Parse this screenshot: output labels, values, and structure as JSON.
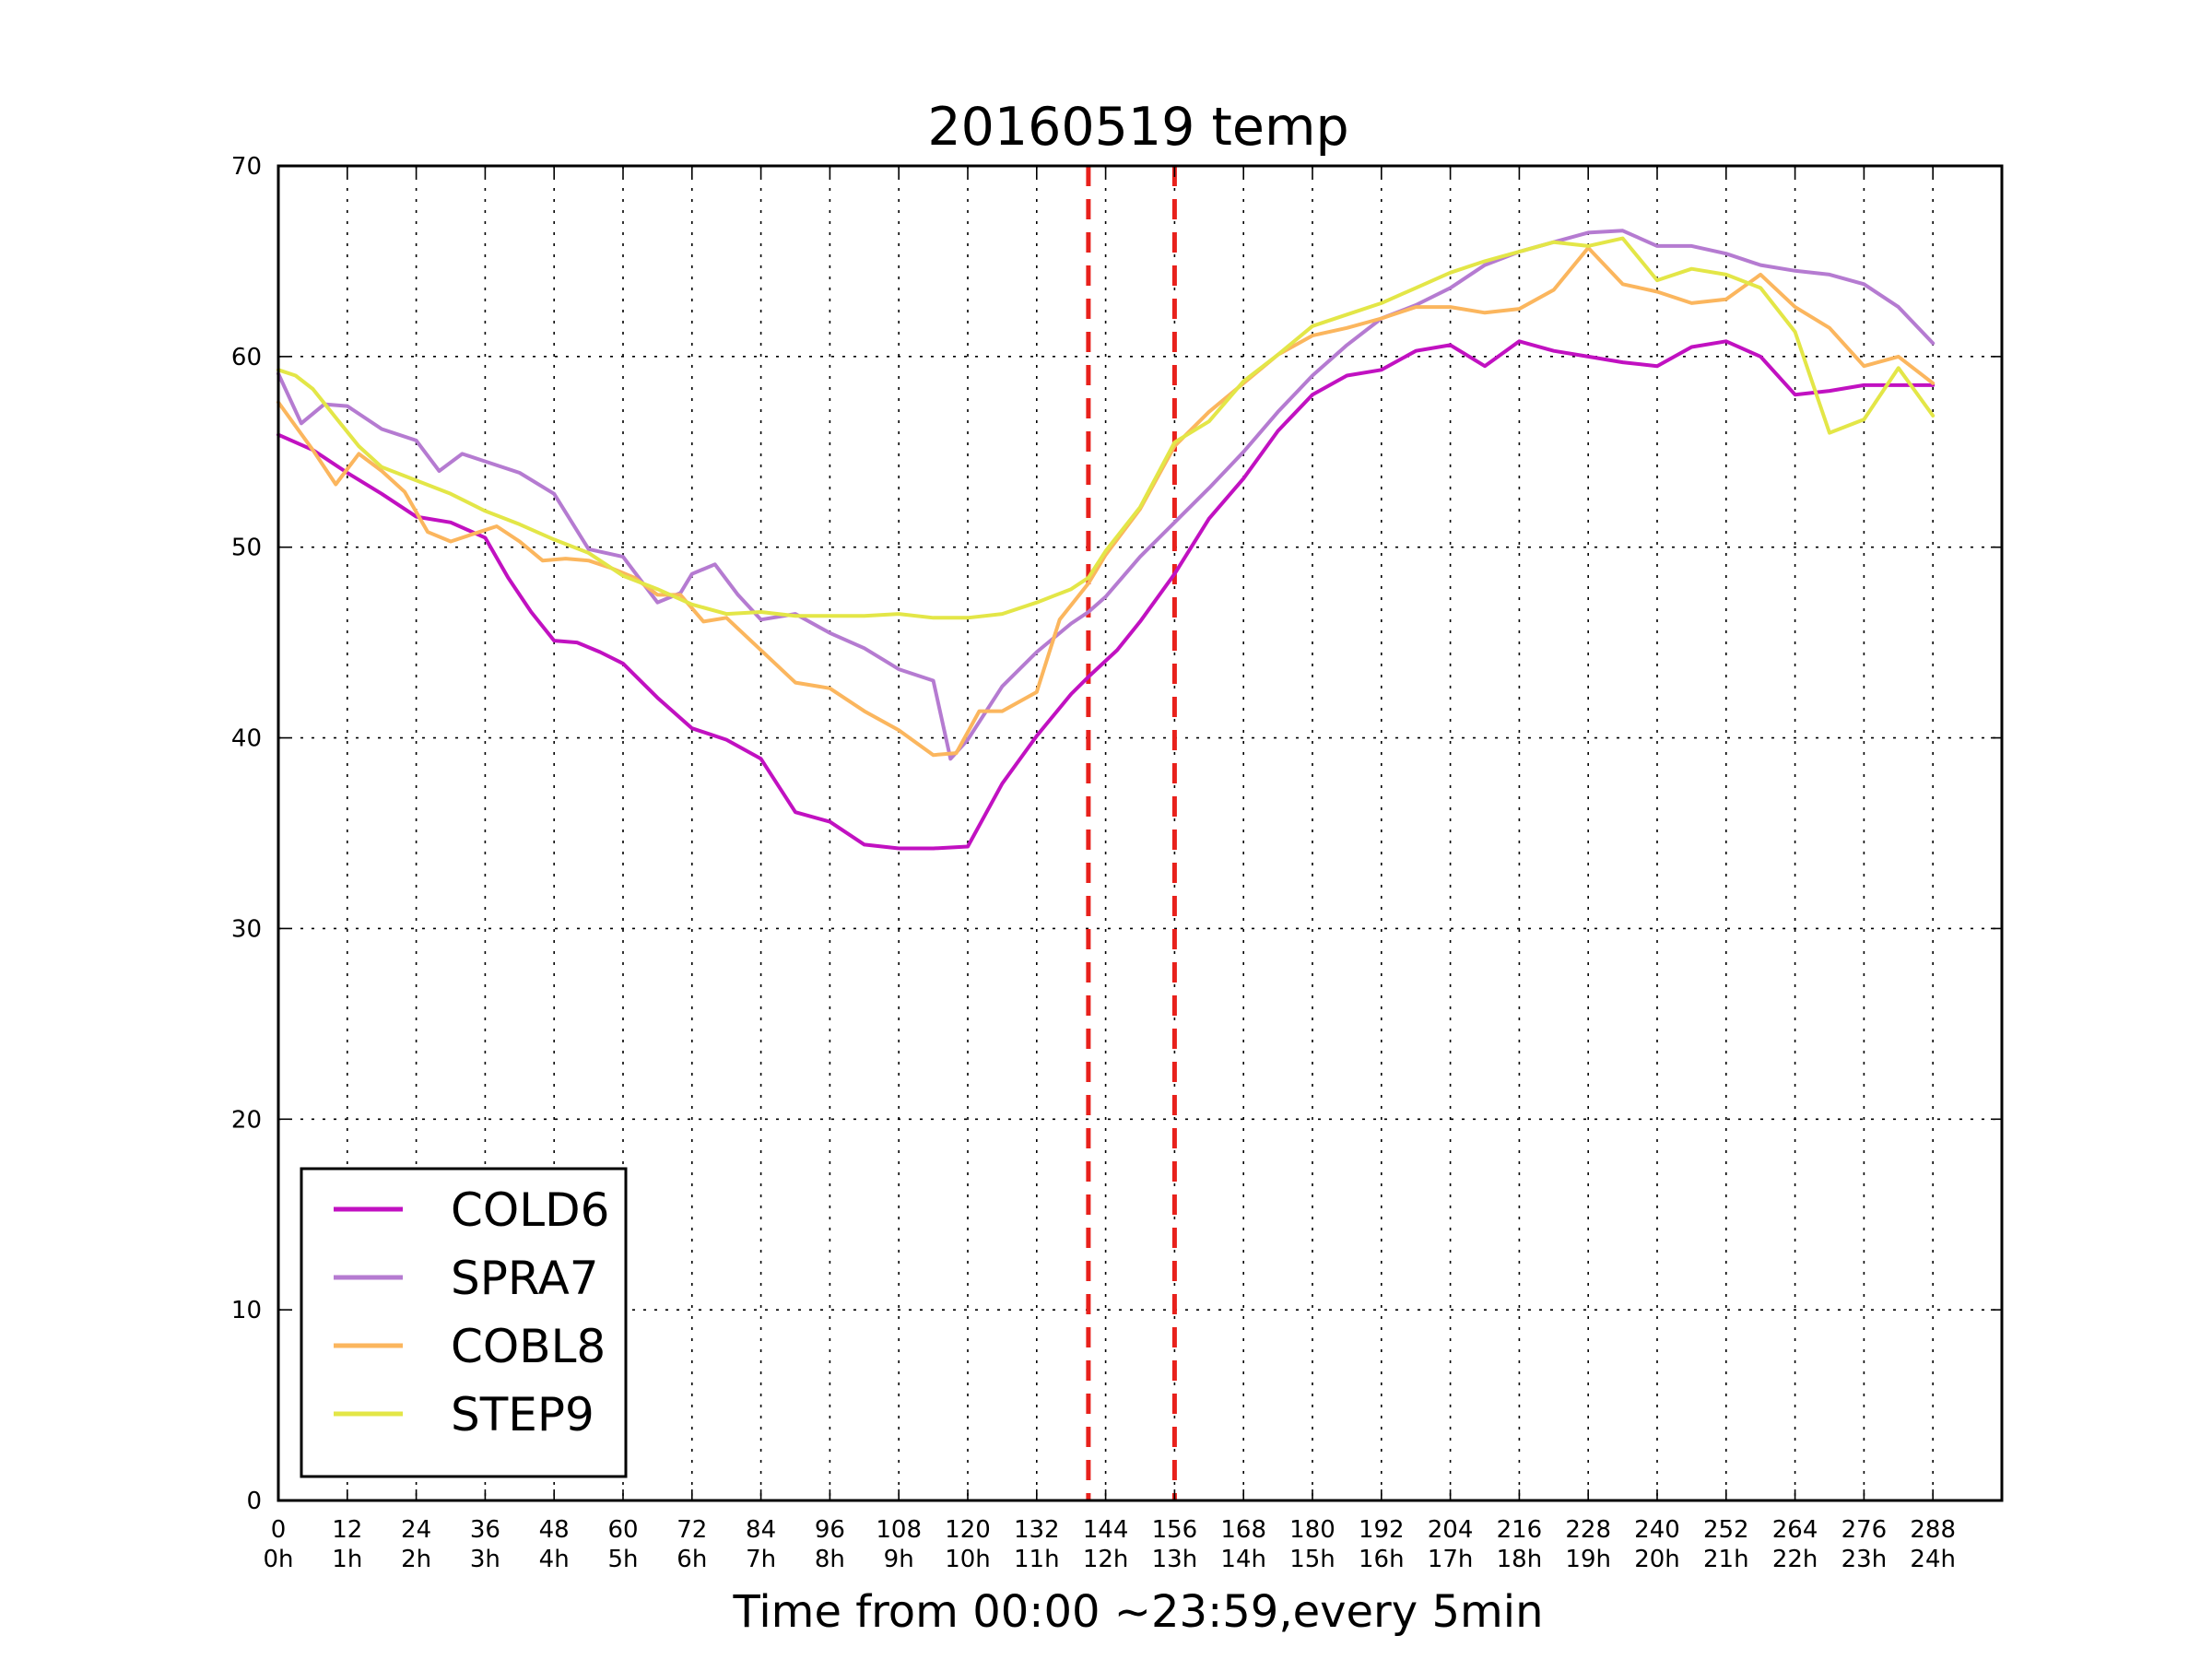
{
  "chart_data": {
    "type": "line",
    "title": "20160519 temp",
    "xlabel": "Time from 00:00 ~23:59,every 5min",
    "ylabel": "",
    "xlim": [
      0,
      300
    ],
    "ylim": [
      0,
      70
    ],
    "grid": true,
    "legend_position": "lower-left",
    "x_ticks": [
      0,
      12,
      24,
      36,
      48,
      60,
      72,
      84,
      96,
      108,
      120,
      132,
      144,
      156,
      168,
      180,
      192,
      204,
      216,
      228,
      240,
      252,
      264,
      276,
      288
    ],
    "x_tick_labels": [
      "0",
      "12",
      "24",
      "36",
      "48",
      "60",
      "72",
      "84",
      "96",
      "108",
      "120",
      "132",
      "144",
      "156",
      "168",
      "180",
      "192",
      "204",
      "216",
      "228",
      "240",
      "252",
      "264",
      "276",
      "288"
    ],
    "x_tick_hours": [
      "0h",
      "1h",
      "2h",
      "3h",
      "4h",
      "5h",
      "6h",
      "7h",
      "8h",
      "9h",
      "10h",
      "11h",
      "12h",
      "13h",
      "14h",
      "15h",
      "16h",
      "17h",
      "18h",
      "19h",
      "20h",
      "21h",
      "22h",
      "23h",
      "24h"
    ],
    "y_ticks": [
      0,
      10,
      20,
      30,
      40,
      50,
      60,
      70
    ],
    "y_tick_labels": [
      "0",
      "10",
      "20",
      "30",
      "40",
      "50",
      "60",
      "70"
    ],
    "vertical_markers": [
      {
        "x": 141,
        "color": "#e8211c",
        "style": "dashed"
      },
      {
        "x": 156,
        "color": "#e8211c",
        "style": "dashed"
      }
    ],
    "series": [
      {
        "name": "COLD6",
        "color": "#c111c1",
        "points": [
          [
            0,
            55.9
          ],
          [
            6,
            55.1
          ],
          [
            12,
            53.9
          ],
          [
            18,
            52.8
          ],
          [
            24,
            51.6
          ],
          [
            30,
            51.3
          ],
          [
            36,
            50.5
          ],
          [
            40,
            48.4
          ],
          [
            44,
            46.6
          ],
          [
            48,
            45.1
          ],
          [
            52,
            45.0
          ],
          [
            56,
            44.5
          ],
          [
            60,
            43.9
          ],
          [
            66,
            42.1
          ],
          [
            72,
            40.5
          ],
          [
            78,
            39.9
          ],
          [
            84,
            38.9
          ],
          [
            90,
            36.1
          ],
          [
            96,
            35.6
          ],
          [
            102,
            34.4
          ],
          [
            108,
            34.2
          ],
          [
            114,
            34.2
          ],
          [
            120,
            34.3
          ],
          [
            126,
            37.6
          ],
          [
            132,
            40.1
          ],
          [
            138,
            42.3
          ],
          [
            141,
            43.2
          ],
          [
            146,
            44.6
          ],
          [
            150,
            46.1
          ],
          [
            156,
            48.6
          ],
          [
            162,
            51.5
          ],
          [
            168,
            53.6
          ],
          [
            174,
            56.1
          ],
          [
            180,
            58.0
          ],
          [
            186,
            59.0
          ],
          [
            192,
            59.3
          ],
          [
            198,
            60.3
          ],
          [
            204,
            60.6
          ],
          [
            210,
            59.5
          ],
          [
            216,
            60.8
          ],
          [
            222,
            60.3
          ],
          [
            228,
            60.0
          ],
          [
            234,
            59.7
          ],
          [
            240,
            59.5
          ],
          [
            246,
            60.5
          ],
          [
            252,
            60.8
          ],
          [
            258,
            60.0
          ],
          [
            264,
            58.0
          ],
          [
            270,
            58.2
          ],
          [
            276,
            58.5
          ],
          [
            282,
            58.5
          ],
          [
            288,
            58.5
          ]
        ]
      },
      {
        "name": "SPRA7",
        "color": "#b57bd1",
        "points": [
          [
            0,
            59.1
          ],
          [
            4,
            56.5
          ],
          [
            8,
            57.5
          ],
          [
            12,
            57.4
          ],
          [
            18,
            56.2
          ],
          [
            24,
            55.6
          ],
          [
            28,
            54.0
          ],
          [
            32,
            54.9
          ],
          [
            36,
            54.5
          ],
          [
            42,
            53.9
          ],
          [
            48,
            52.8
          ],
          [
            54,
            49.9
          ],
          [
            60,
            49.5
          ],
          [
            66,
            47.1
          ],
          [
            70,
            47.6
          ],
          [
            72,
            48.6
          ],
          [
            76,
            49.1
          ],
          [
            80,
            47.5
          ],
          [
            84,
            46.2
          ],
          [
            90,
            46.5
          ],
          [
            96,
            45.5
          ],
          [
            102,
            44.7
          ],
          [
            108,
            43.6
          ],
          [
            114,
            43.0
          ],
          [
            117,
            38.9
          ],
          [
            120,
            39.9
          ],
          [
            126,
            42.7
          ],
          [
            132,
            44.5
          ],
          [
            138,
            46.0
          ],
          [
            141,
            46.6
          ],
          [
            144,
            47.4
          ],
          [
            150,
            49.5
          ],
          [
            156,
            51.3
          ],
          [
            162,
            53.1
          ],
          [
            168,
            55.0
          ],
          [
            174,
            57.1
          ],
          [
            180,
            59.0
          ],
          [
            186,
            60.6
          ],
          [
            192,
            62.0
          ],
          [
            198,
            62.7
          ],
          [
            204,
            63.6
          ],
          [
            210,
            64.8
          ],
          [
            216,
            65.5
          ],
          [
            222,
            66.0
          ],
          [
            228,
            66.5
          ],
          [
            234,
            66.6
          ],
          [
            240,
            65.8
          ],
          [
            246,
            65.8
          ],
          [
            252,
            65.4
          ],
          [
            258,
            64.8
          ],
          [
            264,
            64.5
          ],
          [
            270,
            64.3
          ],
          [
            276,
            63.8
          ],
          [
            282,
            62.6
          ],
          [
            288,
            60.7
          ]
        ]
      },
      {
        "name": "COBL8",
        "color": "#fbb65e",
        "points": [
          [
            0,
            57.6
          ],
          [
            6,
            55.1
          ],
          [
            10,
            53.3
          ],
          [
            14,
            54.9
          ],
          [
            18,
            54.0
          ],
          [
            22,
            52.9
          ],
          [
            26,
            50.8
          ],
          [
            30,
            50.3
          ],
          [
            34,
            50.7
          ],
          [
            38,
            51.1
          ],
          [
            42,
            50.3
          ],
          [
            46,
            49.3
          ],
          [
            50,
            49.4
          ],
          [
            54,
            49.3
          ],
          [
            58,
            48.9
          ],
          [
            62,
            48.4
          ],
          [
            66,
            47.5
          ],
          [
            70,
            47.5
          ],
          [
            74,
            46.1
          ],
          [
            78,
            46.3
          ],
          [
            84,
            44.6
          ],
          [
            90,
            42.9
          ],
          [
            96,
            42.6
          ],
          [
            102,
            41.4
          ],
          [
            108,
            40.4
          ],
          [
            114,
            39.1
          ],
          [
            118,
            39.2
          ],
          [
            122,
            41.4
          ],
          [
            126,
            41.4
          ],
          [
            132,
            42.4
          ],
          [
            136,
            46.2
          ],
          [
            141,
            48.1
          ],
          [
            144,
            49.6
          ],
          [
            150,
            52.0
          ],
          [
            156,
            55.3
          ],
          [
            162,
            57.1
          ],
          [
            168,
            58.6
          ],
          [
            174,
            60.1
          ],
          [
            180,
            61.1
          ],
          [
            186,
            61.5
          ],
          [
            192,
            62.0
          ],
          [
            198,
            62.6
          ],
          [
            204,
            62.6
          ],
          [
            210,
            62.3
          ],
          [
            216,
            62.5
          ],
          [
            222,
            63.5
          ],
          [
            228,
            65.7
          ],
          [
            234,
            63.8
          ],
          [
            240,
            63.4
          ],
          [
            246,
            62.8
          ],
          [
            252,
            63.0
          ],
          [
            258,
            64.3
          ],
          [
            264,
            62.6
          ],
          [
            270,
            61.5
          ],
          [
            276,
            59.5
          ],
          [
            282,
            60.0
          ],
          [
            288,
            58.6
          ]
        ]
      },
      {
        "name": "STEP9",
        "color": "#e3e647",
        "points": [
          [
            0,
            59.3
          ],
          [
            3,
            59.0
          ],
          [
            6,
            58.3
          ],
          [
            10,
            56.8
          ],
          [
            14,
            55.3
          ],
          [
            18,
            54.2
          ],
          [
            24,
            53.5
          ],
          [
            30,
            52.8
          ],
          [
            36,
            51.9
          ],
          [
            42,
            51.2
          ],
          [
            48,
            50.4
          ],
          [
            54,
            49.7
          ],
          [
            60,
            48.5
          ],
          [
            66,
            47.8
          ],
          [
            72,
            47.0
          ],
          [
            78,
            46.5
          ],
          [
            84,
            46.6
          ],
          [
            90,
            46.4
          ],
          [
            96,
            46.4
          ],
          [
            102,
            46.4
          ],
          [
            108,
            46.5
          ],
          [
            114,
            46.3
          ],
          [
            120,
            46.3
          ],
          [
            126,
            46.5
          ],
          [
            132,
            47.1
          ],
          [
            138,
            47.8
          ],
          [
            141,
            48.4
          ],
          [
            144,
            49.8
          ],
          [
            150,
            52.1
          ],
          [
            156,
            55.5
          ],
          [
            162,
            56.6
          ],
          [
            168,
            58.7
          ],
          [
            174,
            60.1
          ],
          [
            180,
            61.6
          ],
          [
            186,
            62.2
          ],
          [
            192,
            62.8
          ],
          [
            198,
            63.6
          ],
          [
            204,
            64.4
          ],
          [
            210,
            65.0
          ],
          [
            216,
            65.5
          ],
          [
            222,
            66.0
          ],
          [
            228,
            65.8
          ],
          [
            234,
            66.2
          ],
          [
            240,
            64.0
          ],
          [
            246,
            64.6
          ],
          [
            252,
            64.3
          ],
          [
            258,
            63.6
          ],
          [
            264,
            61.3
          ],
          [
            270,
            56.0
          ],
          [
            276,
            56.7
          ],
          [
            282,
            59.4
          ],
          [
            288,
            56.9
          ]
        ]
      }
    ]
  }
}
